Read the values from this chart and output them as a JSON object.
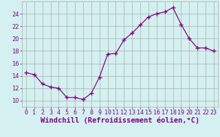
{
  "hours": [
    0,
    1,
    2,
    3,
    4,
    5,
    6,
    7,
    8,
    9,
    10,
    11,
    12,
    13,
    14,
    15,
    16,
    17,
    18,
    19,
    20,
    21,
    22,
    23
  ],
  "values": [
    14.5,
    14.2,
    12.7,
    12.2,
    12.0,
    10.5,
    10.5,
    10.2,
    11.2,
    13.8,
    17.5,
    17.6,
    19.8,
    20.9,
    22.2,
    23.5,
    24.0,
    24.3,
    25.0,
    22.3,
    20.0,
    18.5,
    18.5,
    18.0
  ],
  "line_color": "#800080",
  "marker": "+",
  "marker_size": 4,
  "bg_color": "#d4f0f0",
  "grid_color": "#aaaaaa",
  "xlabel": "Windchill (Refroidissement éolien,°C)",
  "xlabel_color": "#800080",
  "xlabel_fontsize": 7.5,
  "tick_color": "#800080",
  "tick_fontsize": 6,
  "ylim": [
    9,
    26
  ],
  "yticks": [
    10,
    12,
    14,
    16,
    18,
    20,
    22,
    24
  ],
  "xlim": [
    -0.5,
    23.5
  ],
  "xticks": [
    0,
    1,
    2,
    3,
    4,
    5,
    6,
    7,
    8,
    9,
    10,
    11,
    12,
    13,
    14,
    15,
    16,
    17,
    18,
    19,
    20,
    21,
    22,
    23
  ]
}
